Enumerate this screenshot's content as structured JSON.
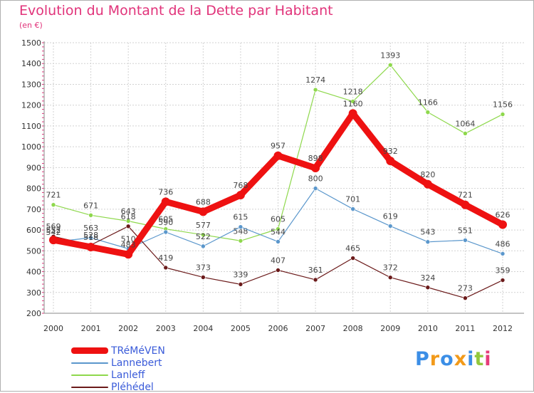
{
  "header": {
    "title": "Evolution du Montant de la Dette par Habitant",
    "subtitle": "(en €)"
  },
  "chart_data": {
    "type": "line",
    "title": "Evolution du Montant de la Dette par Habitant",
    "subtitle": "(en €)",
    "x": [
      "2000",
      "2001",
      "2002",
      "2003",
      "2004",
      "2005",
      "2006",
      "2007",
      "2008",
      "2009",
      "2010",
      "2011",
      "2012"
    ],
    "y_ticks": [
      "200",
      "300",
      "400",
      "500",
      "600",
      "700",
      "800",
      "900",
      "1000",
      "1100",
      "1200",
      "1300",
      "1400",
      "1500"
    ],
    "ylim": [
      200,
      1500
    ],
    "grid": true,
    "legend_position": "bottom-left",
    "series": [
      {
        "name": "Lanleff",
        "color": "#8ed84c",
        "values": [
          721,
          671,
          643,
          605,
          577,
          548,
          605,
          1274,
          1218,
          1393,
          1166,
          1064,
          1156
        ]
      },
      {
        "name": "Lannebert",
        "color": "#5b97cc",
        "values": [
          542,
          563,
          510,
          590,
          522,
          615,
          544,
          800,
          701,
          619,
          543,
          551,
          486
        ]
      },
      {
        "name": "Pléhédel",
        "color": "#6b1a1a",
        "values": [
          569,
          528,
          618,
          419,
          373,
          339,
          407,
          361,
          465,
          372,
          324,
          273,
          359
        ]
      },
      {
        "name": "TRéMéVEN",
        "color": "#ee1111",
        "values": [
          552,
          518,
          483,
          736,
          688,
          768,
          957,
          898,
          1160,
          932,
          820,
          721,
          626
        ]
      }
    ],
    "legend_order": [
      "TRéMéVEN",
      "Lannebert",
      "Lanleff",
      "Pléhédel"
    ]
  },
  "logo": {
    "letters": [
      "P",
      "r",
      "o",
      "x",
      "i",
      "t",
      "i"
    ],
    "colors": [
      "#3b8ee6",
      "#f29a1a",
      "#3b8ee6",
      "#f29a1a",
      "#3b8ee6",
      "#92c83e",
      "#e63b7a"
    ]
  }
}
